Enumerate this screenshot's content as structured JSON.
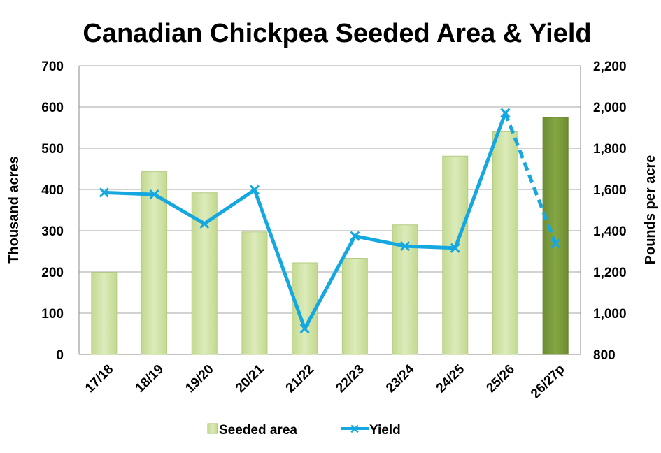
{
  "chart_data": {
    "type": "bar+line",
    "title": "Canadian Chickpea Seeded Area & Yield",
    "categories": [
      "17/18",
      "18/19",
      "19/20",
      "20/21",
      "21/22",
      "22/23",
      "23/24",
      "24/25",
      "25/26",
      "26/27p"
    ],
    "series": [
      {
        "name": "Seeded area",
        "type": "bar",
        "axis": "left",
        "values": [
          199,
          443,
          392,
          297,
          222,
          233,
          314,
          481,
          540,
          575
        ],
        "color": "#d2e3a9",
        "highlight_color": "#7c9c3c"
      },
      {
        "name": "Yield",
        "type": "line",
        "axis": "right",
        "values": [
          1585,
          1576,
          1434,
          1598,
          925,
          1374,
          1325,
          1316,
          1971,
          1338
        ],
        "color": "#15a8e0",
        "projected_last": true
      }
    ],
    "ylabel": "Thousand acres",
    "ylim": [
      0,
      700
    ],
    "yticks": [
      "0",
      "100",
      "200",
      "300",
      "400",
      "500",
      "600",
      "700"
    ],
    "y2label": "Pounds per acre",
    "y2lim": [
      800,
      2200
    ],
    "y2ticks": [
      "800",
      "1,000",
      "1,200",
      "1,400",
      "1,600",
      "1,800",
      "2,000",
      "2,200"
    ],
    "grid": true,
    "legend": "bottom"
  }
}
